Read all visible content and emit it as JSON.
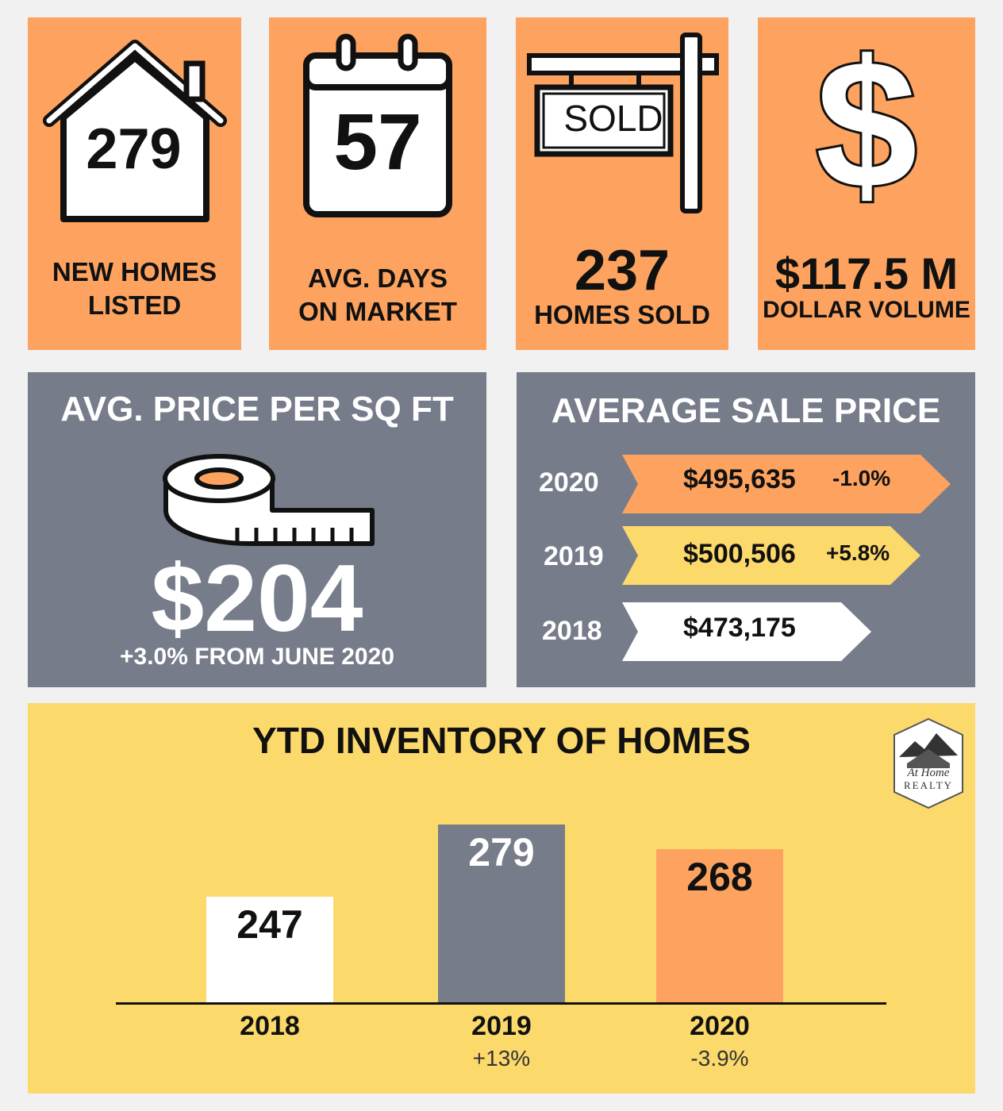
{
  "stats": {
    "new_homes": {
      "value": "279",
      "label_line1": "NEW HOMES",
      "label_line2": "LISTED"
    },
    "days_on_market": {
      "value": "57",
      "label_line1": "AVG. DAYS",
      "label_line2": "ON MARKET"
    },
    "homes_sold": {
      "sign": "SOLD",
      "value": "237",
      "label": "HOMES SOLD"
    },
    "dollar_volume": {
      "symbol": "$",
      "value": "$117.5 M",
      "label": "DOLLAR VOLUME"
    }
  },
  "price_per_sqft": {
    "title": "AVG. PRICE PER SQ FT",
    "value": "$204",
    "change": "+3.0% FROM JUNE 2020"
  },
  "avg_sale_price": {
    "title": "AVERAGE SALE PRICE",
    "rows": [
      {
        "year": "2020",
        "price": "$495,635",
        "change": "-1.0%",
        "color": "#fda35f"
      },
      {
        "year": "2019",
        "price": "$500,506",
        "change": "+5.8%",
        "color": "#fcd96b"
      },
      {
        "year": "2018",
        "price": "$473,175",
        "change": "",
        "color": "#ffffff"
      }
    ]
  },
  "inventory": {
    "title": "YTD INVENTORY OF HOMES",
    "logo_text_line1": "At Home",
    "logo_text_line2": "REALTY"
  },
  "chart_data": {
    "type": "bar",
    "title": "YTD INVENTORY OF HOMES",
    "categories": [
      "2018",
      "2019",
      "2020"
    ],
    "values": [
      247,
      279,
      268
    ],
    "value_labels": [
      "247",
      "279",
      "268"
    ],
    "changes": [
      "",
      "+13%",
      "-3.9%"
    ],
    "colors": [
      "#ffffff",
      "#777c8b",
      "#fda35f"
    ],
    "label_colors": [
      "#111111",
      "#ffffff",
      "#111111"
    ],
    "xlabel": "",
    "ylabel": ""
  }
}
